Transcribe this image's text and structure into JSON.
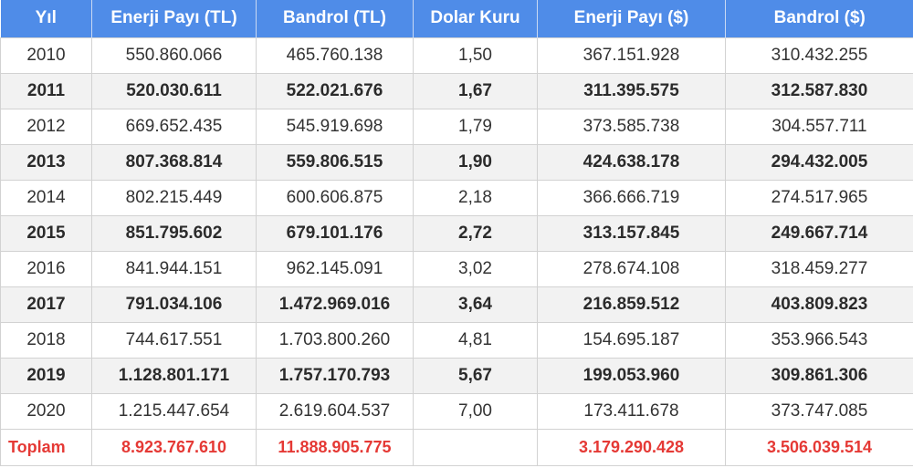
{
  "headers": [
    "Yıl",
    "Enerji Payı (TL)",
    "Bandrol (TL)",
    "Dolar Kuru",
    "Enerji Payı ($)",
    "Bandrol ($)"
  ],
  "rows": [
    {
      "bold": false,
      "cells": [
        "2010",
        "550.860.066",
        "465.760.138",
        "1,50",
        "367.151.928",
        "310.432.255"
      ]
    },
    {
      "bold": true,
      "cells": [
        "2011",
        "520.030.611",
        "522.021.676",
        "1,67",
        "311.395.575",
        "312.587.830"
      ]
    },
    {
      "bold": false,
      "cells": [
        "2012",
        "669.652.435",
        "545.919.698",
        "1,79",
        "373.585.738",
        "304.557.711"
      ]
    },
    {
      "bold": true,
      "cells": [
        "2013",
        "807.368.814",
        "559.806.515",
        "1,90",
        "424.638.178",
        "294.432.005"
      ]
    },
    {
      "bold": false,
      "cells": [
        "2014",
        "802.215.449",
        "600.606.875",
        "2,18",
        "366.666.719",
        "274.517.965"
      ]
    },
    {
      "bold": true,
      "cells": [
        "2015",
        "851.795.602",
        "679.101.176",
        "2,72",
        "313.157.845",
        "249.667.714"
      ]
    },
    {
      "bold": false,
      "cells": [
        "2016",
        "841.944.151",
        "962.145.091",
        "3,02",
        "278.674.108",
        "318.459.277"
      ]
    },
    {
      "bold": true,
      "cells": [
        "2017",
        "791.034.106",
        "1.472.969.016",
        "3,64",
        "216.859.512",
        "403.809.823"
      ]
    },
    {
      "bold": false,
      "cells": [
        "2018",
        "744.617.551",
        "1.703.800.260",
        "4,81",
        "154.695.187",
        "353.966.543"
      ]
    },
    {
      "bold": true,
      "cells": [
        "2019",
        "1.128.801.171",
        "1.757.170.793",
        "5,67",
        "199.053.960",
        "309.861.306"
      ]
    },
    {
      "bold": false,
      "cells": [
        "2020",
        "1.215.447.654",
        "2.619.604.537",
        "7,00",
        "173.411.678",
        "373.747.085"
      ]
    }
  ],
  "total": {
    "label": "Toplam",
    "cells": [
      "8.923.767.610",
      "11.888.905.775",
      "",
      "3.179.290.428",
      "3.506.039.514"
    ]
  },
  "colors": {
    "header_bg": "#4f8ce8",
    "header_text": "#ffffff",
    "total_text": "#e53935",
    "zebra_bg": "#f2f2f2"
  }
}
